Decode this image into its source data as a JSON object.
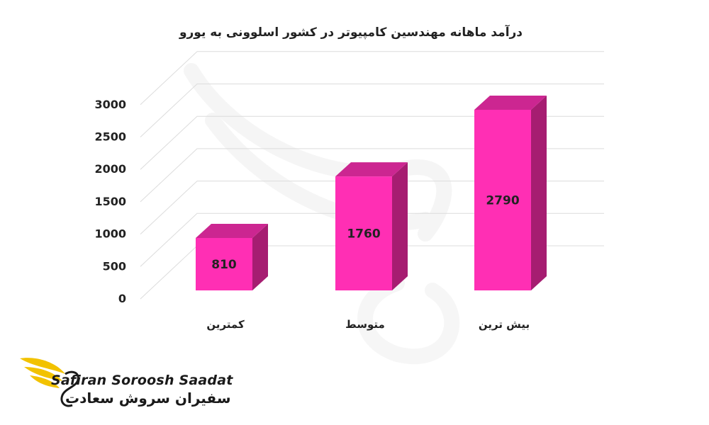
{
  "chart_data": {
    "type": "bar",
    "title": "درآمد ماهانه مهندسین کامپیوتر در کشور اسلوونی به یورو",
    "categories": [
      "کمترین",
      "متوسط",
      "بیش ترین"
    ],
    "values": [
      810,
      1760,
      2790
    ],
    "data_labels": [
      "810",
      "1760",
      "2790"
    ],
    "yticks": [
      0,
      500,
      1000,
      1500,
      2000,
      2500,
      3000
    ],
    "ylim": [
      0,
      3000
    ],
    "grid": true,
    "style": "3d",
    "colors": {
      "front": "#ff2fb4",
      "side": "#a61d71",
      "top": "#cc2691",
      "grid": "#dcdcdc",
      "label": "#222222"
    }
  },
  "brand": {
    "name_en": "Safiran Soroosh Saadat",
    "name_fa": "سفیران سروش سعادت"
  }
}
